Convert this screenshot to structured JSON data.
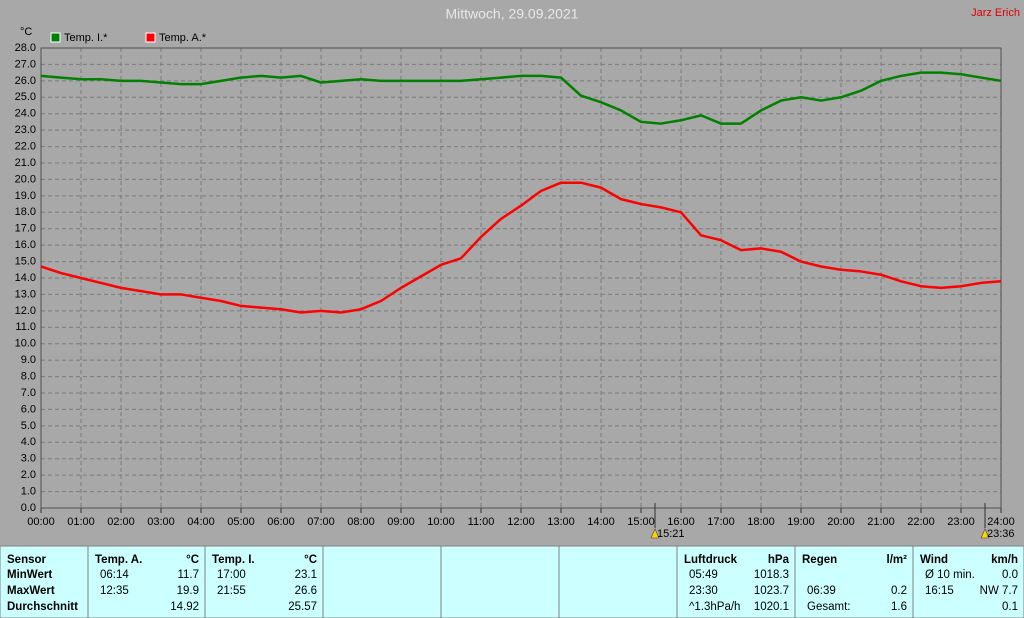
{
  "author": "Jarz Erich",
  "chart_data": {
    "type": "line",
    "title": "Mittwoch, 29.09.2021",
    "y_unit": "°C",
    "x": [
      0,
      0.5,
      1,
      1.5,
      2,
      2.5,
      3,
      3.5,
      4,
      4.5,
      5,
      5.5,
      6,
      6.5,
      7,
      7.5,
      8,
      8.5,
      9,
      9.5,
      10,
      10.5,
      11,
      11.5,
      12,
      12.5,
      13,
      13.5,
      14,
      14.5,
      15,
      15.5,
      16,
      16.5,
      17,
      17.5,
      18,
      18.5,
      19,
      19.5,
      20,
      20.5,
      21,
      21.5,
      22,
      22.5,
      23,
      23.5,
      24
    ],
    "xlim": [
      0,
      24
    ],
    "xticks": [
      {
        "value": 0,
        "label": "00:00"
      },
      {
        "value": 1,
        "label": "01:00"
      },
      {
        "value": 2,
        "label": "02:00"
      },
      {
        "value": 3,
        "label": "03:00"
      },
      {
        "value": 4,
        "label": "04:00"
      },
      {
        "value": 5,
        "label": "05:00"
      },
      {
        "value": 6,
        "label": "06:00"
      },
      {
        "value": 7,
        "label": "07:00"
      },
      {
        "value": 8,
        "label": "08:00"
      },
      {
        "value": 9,
        "label": "09:00"
      },
      {
        "value": 10,
        "label": "10:00"
      },
      {
        "value": 11,
        "label": "11:00"
      },
      {
        "value": 12,
        "label": "12:00"
      },
      {
        "value": 13,
        "label": "13:00"
      },
      {
        "value": 14,
        "label": "14:00"
      },
      {
        "value": 15,
        "label": "15:00"
      },
      {
        "value": 16,
        "label": "16:00"
      },
      {
        "value": 17,
        "label": "17:00"
      },
      {
        "value": 18,
        "label": "18:00"
      },
      {
        "value": 19,
        "label": "19:00"
      },
      {
        "value": 20,
        "label": "20:00"
      },
      {
        "value": 21,
        "label": "21:00"
      },
      {
        "value": 22,
        "label": "22:00"
      },
      {
        "value": 23,
        "label": "23:00"
      },
      {
        "value": 24,
        "label": "24:00"
      }
    ],
    "ylim": [
      0,
      28
    ],
    "yticks": [
      {
        "value": 0,
        "label": "0.0"
      },
      {
        "value": 1,
        "label": "1.0"
      },
      {
        "value": 2,
        "label": "2.0"
      },
      {
        "value": 3,
        "label": "3.0"
      },
      {
        "value": 4,
        "label": "4.0"
      },
      {
        "value": 5,
        "label": "5.0"
      },
      {
        "value": 6,
        "label": "6.0"
      },
      {
        "value": 7,
        "label": "7.0"
      },
      {
        "value": 8,
        "label": "8.0"
      },
      {
        "value": 9,
        "label": "9.0"
      },
      {
        "value": 10,
        "label": "10.0"
      },
      {
        "value": 11,
        "label": "11.0"
      },
      {
        "value": 12,
        "label": "12.0"
      },
      {
        "value": 13,
        "label": "13.0"
      },
      {
        "value": 14,
        "label": "14.0"
      },
      {
        "value": 15,
        "label": "15.0"
      },
      {
        "value": 16,
        "label": "16.0"
      },
      {
        "value": 17,
        "label": "17.0"
      },
      {
        "value": 18,
        "label": "18.0"
      },
      {
        "value": 19,
        "label": "19.0"
      },
      {
        "value": 20,
        "label": "20.0"
      },
      {
        "value": 21,
        "label": "21.0"
      },
      {
        "value": 22,
        "label": "22.0"
      },
      {
        "value": 23,
        "label": "23.0"
      },
      {
        "value": 24,
        "label": "24.0"
      },
      {
        "value": 25,
        "label": "25.0"
      },
      {
        "value": 26,
        "label": "26.0"
      },
      {
        "value": 27,
        "label": "27.0"
      },
      {
        "value": 28,
        "label": "28.0"
      }
    ],
    "grid": true,
    "series": [
      {
        "name": "Temp. I.*",
        "color": "#008000",
        "values": [
          26.3,
          26.2,
          26.1,
          26.1,
          26.0,
          26.0,
          25.9,
          25.8,
          25.8,
          26.0,
          26.2,
          26.3,
          26.2,
          26.3,
          25.9,
          26.0,
          26.1,
          26.0,
          26.0,
          26.0,
          26.0,
          26.0,
          26.1,
          26.2,
          26.3,
          26.3,
          26.2,
          25.1,
          24.7,
          24.2,
          23.5,
          23.4,
          23.6,
          23.9,
          23.4,
          23.4,
          24.2,
          24.8,
          25.0,
          24.8,
          25.0,
          25.4,
          26.0,
          26.3,
          26.5,
          26.5,
          26.4,
          26.2,
          26.0
        ]
      },
      {
        "name": "Temp. A.*",
        "color": "#ff0000",
        "values": [
          14.7,
          14.3,
          14.0,
          13.7,
          13.4,
          13.2,
          13.0,
          13.0,
          12.8,
          12.6,
          12.3,
          12.2,
          12.1,
          11.9,
          12.0,
          11.9,
          12.1,
          12.6,
          13.4,
          14.1,
          14.8,
          15.2,
          16.5,
          17.6,
          18.4,
          19.3,
          19.8,
          19.8,
          19.5,
          18.8,
          18.5,
          18.3,
          18.0,
          16.6,
          16.3,
          15.7,
          15.8,
          15.6,
          15.0,
          14.7,
          14.5,
          14.4,
          14.2,
          13.8,
          13.5,
          13.4,
          13.5,
          13.7,
          13.8
        ]
      }
    ],
    "markers": [
      {
        "label": "15:21",
        "x": 15.35
      },
      {
        "label": "23:36",
        "x": 23.6
      }
    ]
  },
  "table": {
    "columns": [
      {
        "header": "Sensor",
        "rows": [
          {
            "left": "MinWert"
          },
          {
            "left": "MaxWert"
          },
          {
            "left": "Durchschnitt"
          }
        ]
      },
      {
        "header": "Temp. A.",
        "unit": "°C",
        "rows": [
          {
            "left": "06:14",
            "right": "11.7"
          },
          {
            "left": "12:35",
            "right": "19.9"
          },
          {
            "right": "14.92"
          }
        ]
      },
      {
        "header": "Temp. I.",
        "unit": "°C",
        "rows": [
          {
            "left": "17:00",
            "right": "23.1"
          },
          {
            "left": "21:55",
            "right": "26.6"
          },
          {
            "right": "25.57"
          }
        ]
      },
      {
        "header": "Luftdruck",
        "unit": "hPa",
        "rows": [
          {
            "left": "05:49",
            "right": "1018.3"
          },
          {
            "left": "23:30",
            "right": "1023.7"
          },
          {
            "left": "^1.3hPa/h",
            "right": "1020.1"
          }
        ]
      },
      {
        "header": "Regen",
        "unit": "l/m²",
        "rows": [
          null,
          {
            "left": "06:39",
            "right": "0.2"
          },
          {
            "left": "Gesamt:",
            "right": "1.6"
          }
        ]
      },
      {
        "header": "Wind",
        "unit": "km/h",
        "rows": [
          {
            "left": "Ø 10 min.",
            "right": "0.0"
          },
          {
            "left": "16:15",
            "right": "NW 7.7"
          },
          {
            "right": "0.1"
          }
        ]
      }
    ]
  }
}
